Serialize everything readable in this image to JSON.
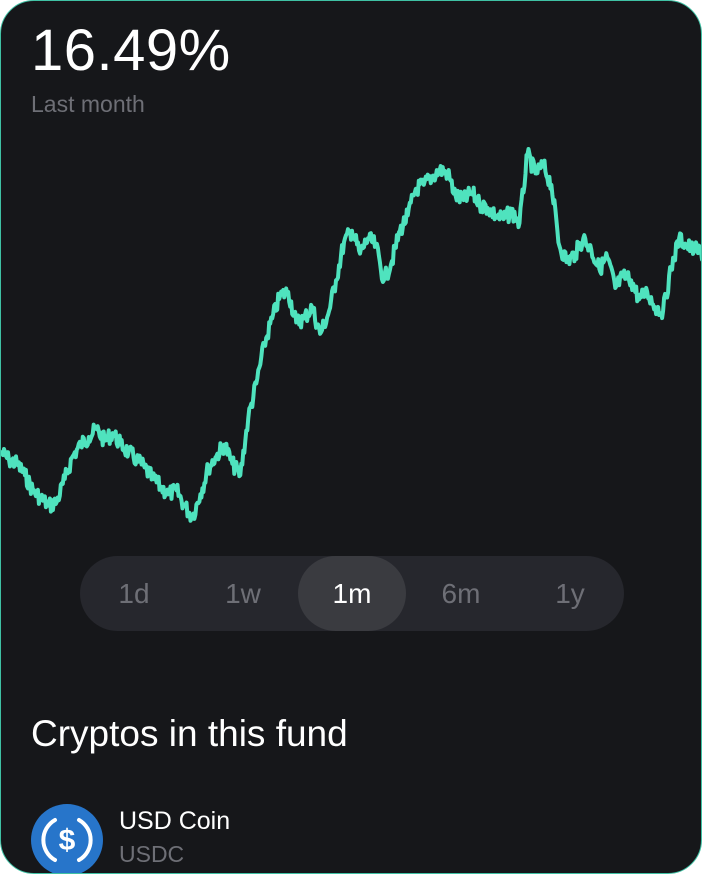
{
  "performance": {
    "value": "16.49%",
    "period_caption": "Last month"
  },
  "chart_data": {
    "type": "line",
    "title": "",
    "xlabel": "",
    "ylabel": "",
    "line_color": "#4fe3be",
    "grid": false,
    "ylim": [
      0,
      100
    ],
    "series": [
      {
        "values": [
          18,
          16,
          15,
          12,
          8,
          6,
          4,
          5,
          11,
          17,
          20,
          22,
          24,
          21,
          23,
          20,
          18,
          16,
          14,
          11,
          9,
          7,
          8,
          4,
          1,
          7,
          14,
          17,
          20,
          15,
          12,
          27,
          36,
          46,
          53,
          59,
          60,
          52,
          53,
          56,
          49,
          54,
          63,
          73,
          76,
          70,
          74,
          72,
          63,
          68,
          76,
          80,
          87,
          88,
          90,
          92,
          91,
          85,
          84,
          86,
          83,
          82,
          80,
          79,
          81,
          78,
          96,
          91,
          93,
          88,
          72,
          68,
          70,
          74,
          71,
          66,
          69,
          61,
          64,
          63,
          58,
          60,
          56,
          55,
          66,
          74,
          72,
          71,
          70
        ]
      }
    ]
  },
  "time_ranges": {
    "options": [
      "1d",
      "1w",
      "1m",
      "6m",
      "1y"
    ],
    "selected": "1m"
  },
  "fund": {
    "section_title": "Cryptos in this fund",
    "items": [
      {
        "name": "USD Coin",
        "symbol": "USDC",
        "icon": "usdc-coin-icon",
        "color": "#2775ca"
      }
    ]
  }
}
